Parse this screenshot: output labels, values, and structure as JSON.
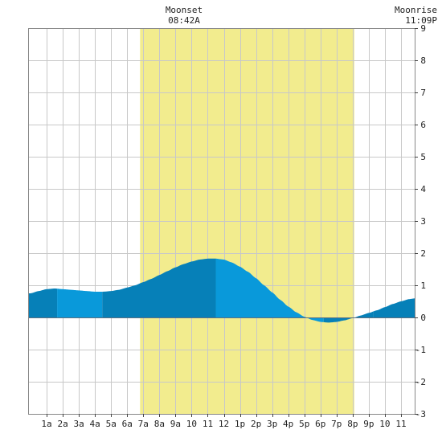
{
  "annotations": {
    "moonset": {
      "label": "Moonset",
      "time": "08:42A"
    },
    "moonrise": {
      "label": "Moonrise",
      "time": "11:09P"
    }
  },
  "chart_data": {
    "type": "area",
    "x_hours": [
      0,
      0.5,
      1,
      1.5,
      2,
      2.5,
      3,
      3.5,
      4,
      4.5,
      5,
      5.5,
      6,
      6.5,
      7,
      7.5,
      8,
      8.5,
      9,
      9.5,
      10,
      10.5,
      11,
      11.5,
      12,
      12.5,
      13,
      13.5,
      14,
      14.5,
      15,
      15.5,
      16,
      16.5,
      17,
      17.5,
      18,
      18.5,
      19,
      19.5,
      20,
      20.5,
      21,
      21.5,
      22,
      22.5,
      23,
      23.5,
      24
    ],
    "values": [
      0.75,
      0.82,
      0.88,
      0.9,
      0.88,
      0.86,
      0.84,
      0.82,
      0.8,
      0.8,
      0.82,
      0.86,
      0.93,
      1.0,
      1.1,
      1.2,
      1.32,
      1.44,
      1.56,
      1.66,
      1.74,
      1.8,
      1.83,
      1.83,
      1.8,
      1.71,
      1.58,
      1.42,
      1.22,
      1.0,
      0.78,
      0.55,
      0.34,
      0.16,
      0.02,
      -0.08,
      -0.14,
      -0.16,
      -0.14,
      -0.09,
      -0.02,
      0.06,
      0.14,
      0.22,
      0.32,
      0.42,
      0.5,
      0.57,
      0.6
    ],
    "x_tick_labels": [
      "1a",
      "2a",
      "3a",
      "4a",
      "5a",
      "6a",
      "7a",
      "8a",
      "9a",
      "10",
      "11",
      "12",
      "1p",
      "2p",
      "3p",
      "4p",
      "5p",
      "6p",
      "7p",
      "8p",
      "9p",
      "10",
      "11"
    ],
    "y_tick_labels": [
      "9",
      "8",
      "7",
      "6",
      "5",
      "4",
      "3",
      "2",
      "1",
      "0",
      "-1",
      "-2",
      "-3"
    ],
    "ylim": [
      -3,
      9
    ],
    "xlim_hours": [
      -0.15,
      23.85
    ],
    "daylight_hours": [
      6.8,
      20.1
    ],
    "tide_bands": [
      {
        "from": -0.15,
        "to": 1.65,
        "shade": "dark"
      },
      {
        "from": 1.65,
        "to": 4.45,
        "shade": "light"
      },
      {
        "from": 4.45,
        "to": 11.5,
        "shade": "dark"
      },
      {
        "from": 11.5,
        "to": 18.2,
        "shade": "light"
      },
      {
        "from": 18.2,
        "to": 21.3,
        "shade": "dark"
      },
      {
        "from": 21.3,
        "to": 23.85,
        "shade": "dark"
      }
    ],
    "colors": {
      "daylight": "#f2ec8e",
      "tide_dark": "#0680b8",
      "tide_light": "#0999da",
      "grid": "#c8c8c8",
      "frame": "#888888"
    },
    "grid": true
  }
}
